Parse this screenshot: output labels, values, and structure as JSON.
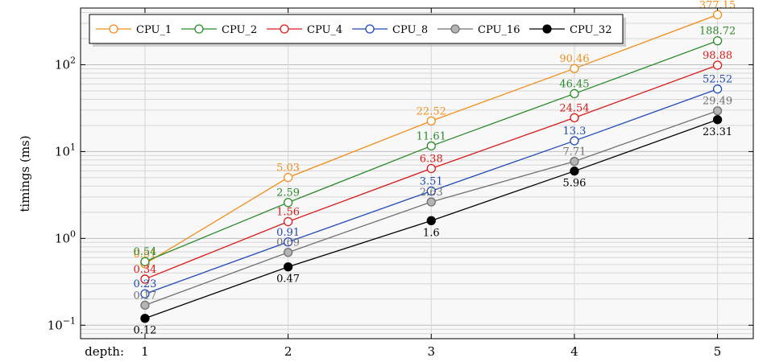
{
  "chart_data": {
    "type": "line",
    "x_prefix": "depth:",
    "x": [
      1,
      2,
      3,
      4,
      5
    ],
    "ylabel": "timings (ms)",
    "yscale": "log",
    "ylim": [
      0.07,
      450
    ],
    "xlim": [
      0.55,
      5.25
    ],
    "y_ticks": [
      {
        "value": 0.1,
        "base": "10",
        "exp": "−1"
      },
      {
        "value": 1,
        "base": "10",
        "exp": "0"
      },
      {
        "value": 10,
        "base": "10",
        "exp": "1"
      },
      {
        "value": 100,
        "base": "10",
        "exp": "2"
      }
    ],
    "grid": true,
    "legend_position": "top-left",
    "series": [
      {
        "name": "CPU_1",
        "color": "#f28e1c",
        "fill": "#ffffff",
        "values": [
          0.51,
          5.03,
          22.52,
          90.46,
          377.15
        ],
        "labels": [
          "0.51",
          "5.03",
          "22.52",
          "90.46",
          "377.15"
        ],
        "label_pos": [
          "above",
          "above",
          "above",
          "above",
          "above"
        ]
      },
      {
        "name": "CPU_2",
        "color": "#2a8a2a",
        "fill": "#ffffff",
        "values": [
          0.54,
          2.59,
          11.61,
          46.45,
          188.72
        ],
        "labels": [
          "0.54",
          "2.59",
          "11.61",
          "46.45",
          "188.72"
        ],
        "label_pos": [
          "above",
          "above",
          "above",
          "above",
          "above"
        ]
      },
      {
        "name": "CPU_4",
        "color": "#d91a1a",
        "fill": "#ffffff",
        "values": [
          0.34,
          1.56,
          6.38,
          24.54,
          98.88
        ],
        "labels": [
          "0.34",
          "1.56",
          "6.38",
          "24.54",
          "98.88"
        ],
        "label_pos": [
          "above",
          "above",
          "above",
          "above",
          "above"
        ]
      },
      {
        "name": "CPU_8",
        "color": "#2048b8",
        "fill": "#ffffff",
        "values": [
          0.23,
          0.91,
          3.51,
          13.3,
          52.52
        ],
        "labels": [
          "0.23",
          "0.91",
          "3.51",
          "13.3",
          "52.52"
        ],
        "label_pos": [
          "above",
          "above",
          "above",
          "above",
          "above"
        ]
      },
      {
        "name": "CPU_16",
        "color": "#707070",
        "fill": "#b4b4b4",
        "values": [
          0.17,
          0.69,
          2.63,
          7.71,
          29.49
        ],
        "labels": [
          "0.17",
          "0.69",
          "2.63",
          "7.71",
          "29.49"
        ],
        "label_pos": [
          "above",
          "above",
          "above",
          "above",
          "above"
        ]
      },
      {
        "name": "CPU_32",
        "color": "#000000",
        "fill": "#000000",
        "values": [
          0.12,
          0.47,
          1.6,
          5.96,
          23.31
        ],
        "labels": [
          "0.12",
          "0.47",
          "1.6",
          "5.96",
          "23.31"
        ],
        "label_pos": [
          "below",
          "below",
          "below",
          "below",
          "below"
        ]
      }
    ]
  }
}
